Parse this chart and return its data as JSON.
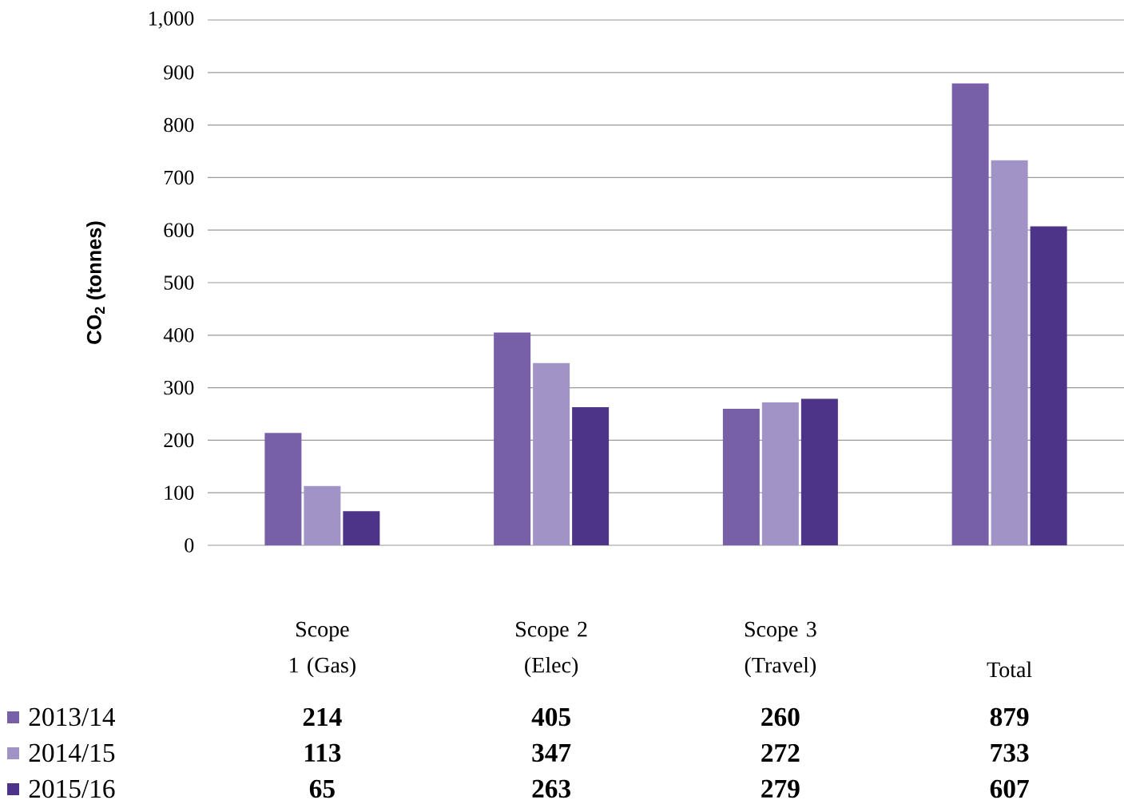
{
  "chart_data": {
    "type": "bar",
    "ylabel": "CO$_{2}$ (tonnes)",
    "categories": [
      "Scope 1 (Gas)",
      "Scope 2 (Elec)",
      "Scope 3 (Travel)",
      "Total"
    ],
    "series": [
      {
        "name": "2013/14",
        "color": "#7860a8",
        "values": [
          214,
          405,
          260,
          879
        ]
      },
      {
        "name": "2014/15",
        "color": "#a193c6",
        "values": [
          113,
          347,
          272,
          733
        ]
      },
      {
        "name": "2015/16",
        "color": "#4e3489",
        "values": [
          65,
          263,
          279,
          607
        ]
      }
    ],
    "ylim": [
      0,
      1000
    ],
    "yticks": [
      0,
      100,
      200,
      300,
      400,
      500,
      600,
      700,
      800,
      900,
      {
        "value": 1000,
        "label": "1,000"
      }
    ],
    "grid": "y",
    "legend": "bottom",
    "data_labels": true
  }
}
